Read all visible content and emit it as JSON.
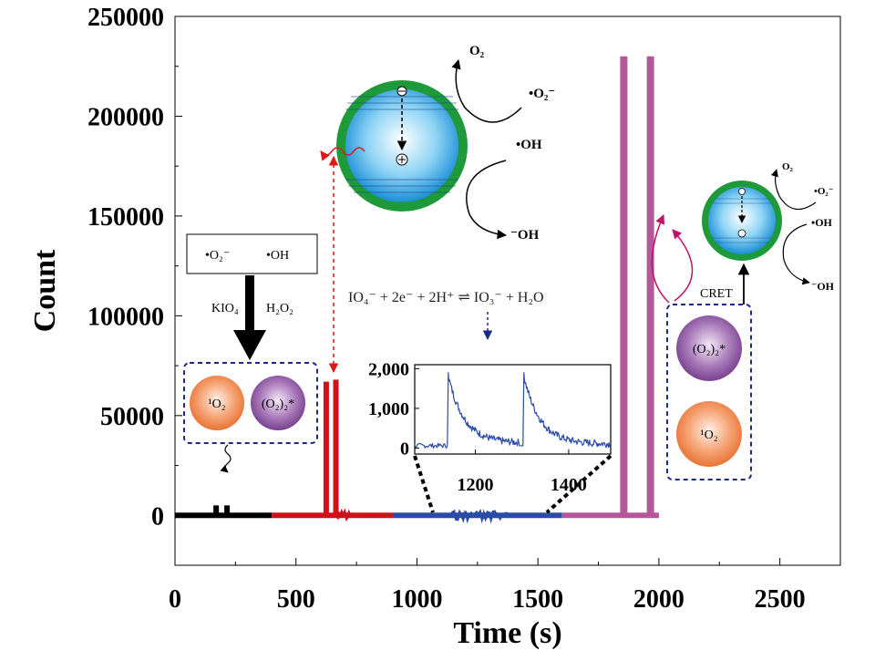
{
  "chart_data": {
    "type": "line",
    "xlabel": "Time (s)",
    "ylabel": "Count",
    "xlim": [
      0,
      2750
    ],
    "ylim": [
      -25000,
      250000
    ],
    "x_ticks": [
      "0",
      "500",
      "1000",
      "1500",
      "2000",
      "2500"
    ],
    "y_ticks": [
      "0",
      "50000",
      "100000",
      "150000",
      "200000",
      "250000"
    ],
    "grid": false,
    "series": [
      {
        "color": "#000000",
        "segments": [
          [
            0,
            400
          ]
        ],
        "peaks": [
          [
            170,
            5000
          ],
          [
            215,
            5000
          ]
        ]
      },
      {
        "color": "#d0101a",
        "segments": [
          [
            400,
            900
          ]
        ],
        "peaks": [
          [
            625,
            67000
          ],
          [
            665,
            68000
          ]
        ]
      },
      {
        "color": "#2a4ca8",
        "segments": [
          [
            900,
            1600
          ]
        ],
        "peaks": []
      },
      {
        "color": "#b5589a",
        "segments": [
          [
            1600,
            2000
          ]
        ],
        "peaks": [
          [
            1855,
            230000
          ],
          [
            1965,
            230000
          ]
        ]
      }
    ],
    "inset": {
      "x_ticks": [
        "1200",
        "1400"
      ],
      "y_ticks": [
        "0",
        "1,000",
        "2,000"
      ],
      "xlim": [
        1070,
        1490
      ],
      "ylim": [
        -150,
        2100
      ],
      "pulses": [
        {
          "start": 1140,
          "peak": 1900,
          "decay_to": 120,
          "end": 1295
        },
        {
          "start": 1302,
          "peak": 1900,
          "decay_to": 100,
          "end": 1490
        }
      ],
      "color": "#2a4ca8"
    }
  },
  "annotations": {
    "box_radicals": {
      "superoxide": "•O₂⁻",
      "hydroxyl": "•OH"
    },
    "reagents": {
      "left": "KIO₄",
      "right": "H₂O₂"
    },
    "singlet_oxygen": "¹O₂",
    "dimol": "(O₂)₂*",
    "cret": "CRET",
    "equation": "IO₄⁻ + 2e⁻ + 2H⁺ ⇌ IO₃⁻ + H₂O",
    "large_particle": {
      "o2": "O₂",
      "superoxide": "•O₂⁻",
      "hydroxyl": "•OH",
      "hydroxide": "⁻OH"
    },
    "small_particle": {
      "o2": "O₂",
      "superoxide": "•O₂⁻",
      "hydroxyl": "•OH",
      "hydroxide": "⁻OH"
    }
  },
  "colors": {
    "ring_green": "#1e9a3a",
    "particle_blue": "#2aa0e0",
    "sphere_orange": "#ef7a3c",
    "sphere_purple": "#8a4a9e",
    "dash_blue": "#1a2a8a",
    "magenta": "#c0106a"
  }
}
